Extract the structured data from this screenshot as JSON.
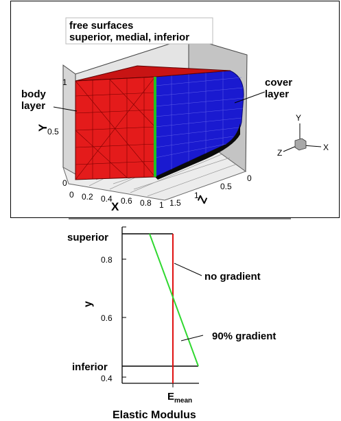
{
  "top_panel": {
    "title_line1": "free surfaces",
    "title_line2": "superior, medial, inferior",
    "body_label_line1": "body",
    "body_label_line2": "layer",
    "cover_label_line1": "cover",
    "cover_label_line2": "layer",
    "axis_y_label": "Y",
    "axis_x_label": "X",
    "axis_z_label": "Z",
    "y_ticks": [
      "1",
      "0.5",
      "0"
    ],
    "x_ticks": [
      "0",
      "0.2",
      "0.4",
      "0.6",
      "0.8",
      "1"
    ],
    "z_ticks": [
      "0",
      "0.5",
      "1",
      "1.5"
    ],
    "triad": {
      "y": "Y",
      "x": "X",
      "z": "Z"
    },
    "colors": {
      "body": "#e41b1b",
      "cover": "#1a1ad0",
      "interface": "#22c022",
      "bottom": "#111111",
      "walls": "#c8c8c8"
    }
  },
  "bottom_panel": {
    "y_axis_label": "y",
    "x_axis_label": "Elastic Modulus",
    "x_tick_label_main": "E",
    "x_tick_label_sub": "mean",
    "y_tick_labels": [
      "superior",
      "0.8",
      "0.6",
      "inferior",
      "0.4"
    ],
    "annotations": {
      "no_gradient": "no gradient",
      "gradient": "90% gradient"
    },
    "colors": {
      "no_gradient": "#e01010",
      "gradient": "#2fd82f"
    }
  }
}
